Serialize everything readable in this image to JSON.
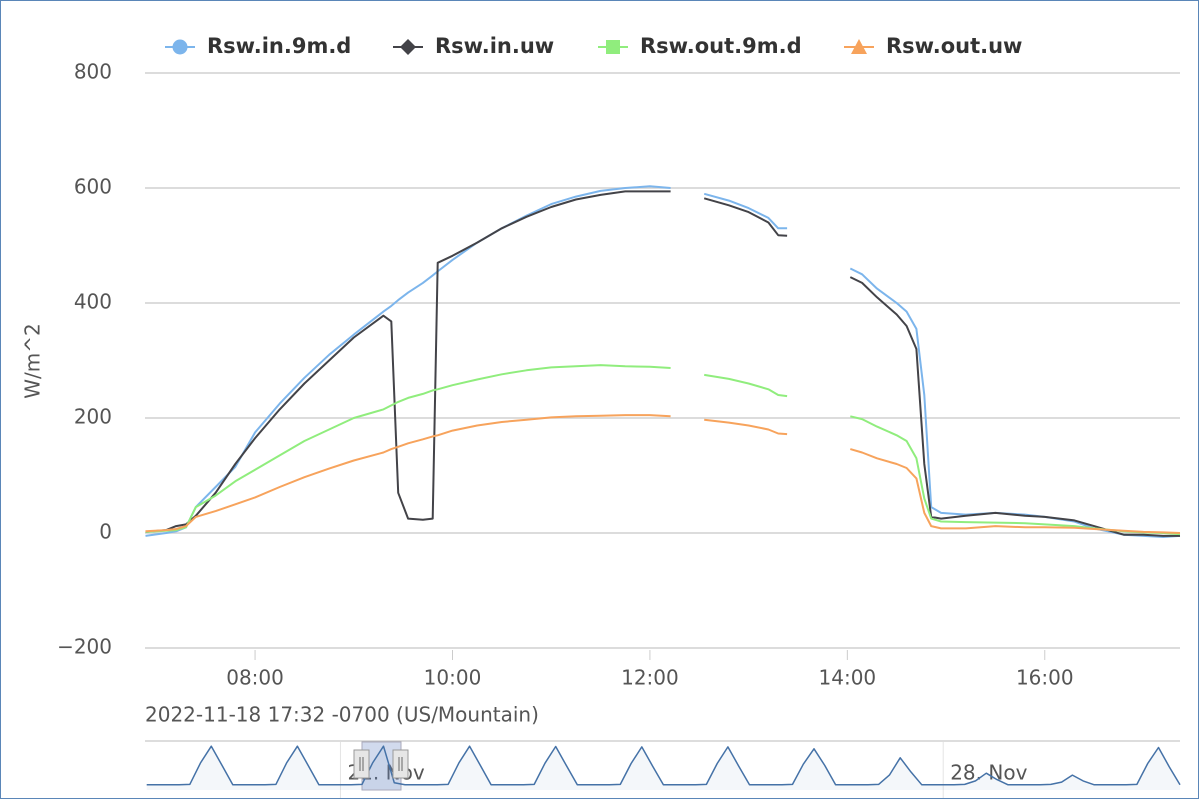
{
  "chart_data": {
    "type": "line",
    "y_axis_label": "W/m^2",
    "caption": "2022-11-18 17:32 -0700 (US/Mountain)",
    "grid": true,
    "legend": "top",
    "xlim": [
      6.885,
      17.37
    ],
    "xticks": [
      {
        "value": 8,
        "label": "08:00"
      },
      {
        "value": 10,
        "label": "10:00"
      },
      {
        "value": 12,
        "label": "12:00"
      },
      {
        "value": 14,
        "label": "14:00"
      },
      {
        "value": 16,
        "label": "16:00"
      }
    ],
    "ylim": [
      -200,
      800
    ],
    "yticks": [
      {
        "value": -200,
        "label": "−200"
      },
      0,
      200,
      400,
      600,
      800
    ],
    "x": [
      6.89,
      7.1,
      7.2,
      7.3,
      7.4,
      7.6,
      7.8,
      8.0,
      8.25,
      8.5,
      8.75,
      9.0,
      9.3,
      9.38,
      9.45,
      9.55,
      9.7,
      9.8,
      9.85,
      10.0,
      10.25,
      10.5,
      10.75,
      11.0,
      11.25,
      11.5,
      11.75,
      12.0,
      12.21,
      12.38,
      12.55,
      12.8,
      13.0,
      13.2,
      13.3,
      13.39,
      13.7,
      14.03,
      14.15,
      14.3,
      14.5,
      14.6,
      14.7,
      14.78,
      14.85,
      14.95,
      15.2,
      15.5,
      15.8,
      16.0,
      16.3,
      16.5,
      16.8,
      17.0,
      17.2,
      17.37
    ],
    "series": [
      {
        "name": "Rsw.in.9m.d",
        "color": "#7cb5ec",
        "marker": "circle",
        "values": [
          -5,
          0,
          3,
          10,
          45,
          80,
          115,
          175,
          225,
          270,
          310,
          345,
          385,
          395,
          405,
          418,
          435,
          448,
          455,
          475,
          505,
          530,
          552,
          572,
          585,
          595,
          600,
          603,
          600,
          null,
          590,
          578,
          565,
          548,
          530,
          530,
          null,
          460,
          450,
          425,
          400,
          385,
          355,
          240,
          45,
          35,
          32,
          35,
          32,
          28,
          20,
          8,
          -3,
          -5,
          -7,
          -5
        ]
      },
      {
        "name": "Rsw.in.uw",
        "color": "#434348",
        "marker": "diamond",
        "values": [
          2,
          5,
          12,
          15,
          30,
          70,
          120,
          165,
          215,
          260,
          300,
          340,
          378,
          368,
          70,
          25,
          23,
          25,
          470,
          482,
          505,
          530,
          550,
          567,
          580,
          588,
          594,
          594,
          594,
          null,
          582,
          570,
          558,
          540,
          518,
          517,
          null,
          445,
          435,
          410,
          380,
          360,
          320,
          120,
          28,
          25,
          30,
          35,
          30,
          28,
          22,
          12,
          -3,
          -3,
          -5,
          -5
        ]
      },
      {
        "name": "Rsw.out.9m.d",
        "color": "#90ed7d",
        "marker": "square",
        "values": [
          2,
          4,
          5,
          10,
          45,
          65,
          90,
          110,
          135,
          160,
          180,
          200,
          215,
          222,
          228,
          235,
          242,
          248,
          250,
          257,
          267,
          276,
          283,
          288,
          290,
          292,
          290,
          289,
          287,
          null,
          275,
          268,
          260,
          250,
          240,
          238,
          null,
          203,
          198,
          185,
          170,
          160,
          130,
          60,
          25,
          20,
          19,
          18,
          17,
          15,
          12,
          8,
          3,
          1,
          0,
          -2
        ]
      },
      {
        "name": "Rsw.out.uw",
        "color": "#f7a35c",
        "marker": "triangle",
        "values": [
          3,
          5,
          7,
          12,
          28,
          38,
          50,
          62,
          80,
          97,
          112,
          126,
          140,
          146,
          150,
          156,
          163,
          168,
          170,
          178,
          187,
          193,
          197,
          201,
          203,
          204,
          205,
          205,
          203,
          null,
          197,
          192,
          187,
          180,
          173,
          172,
          null,
          146,
          140,
          130,
          120,
          113,
          95,
          35,
          12,
          8,
          8,
          12,
          10,
          10,
          9,
          7,
          4,
          2,
          1,
          0
        ]
      }
    ],
    "navigator": {
      "color": "#4572a7",
      "xlim": [
        18.73,
        30.75
      ],
      "ylim": [
        -20,
        650
      ],
      "xticks": [
        {
          "value": 21,
          "label": "21. Nov"
        },
        {
          "value": 28,
          "label": "28. Nov"
        }
      ],
      "x": [
        18.75,
        18.875,
        19,
        19.125,
        19.25,
        19.375,
        19.5,
        19.625,
        19.75,
        19.875,
        20,
        20.125,
        20.25,
        20.375,
        20.5,
        20.625,
        20.75,
        20.875,
        21,
        21.125,
        21.25,
        21.375,
        21.5,
        21.625,
        21.75,
        21.875,
        22,
        22.125,
        22.25,
        22.375,
        22.5,
        22.625,
        22.75,
        22.875,
        23,
        23.125,
        23.25,
        23.375,
        23.5,
        23.625,
        23.75,
        23.875,
        24,
        24.125,
        24.25,
        24.375,
        24.5,
        24.625,
        24.75,
        24.875,
        25,
        25.125,
        25.25,
        25.375,
        25.5,
        25.625,
        25.75,
        25.875,
        26,
        26.125,
        26.25,
        26.375,
        26.5,
        26.625,
        26.75,
        26.875,
        27,
        27.125,
        27.25,
        27.375,
        27.5,
        27.625,
        27.75,
        27.875,
        28,
        28.125,
        28.25,
        28.375,
        28.5,
        28.625,
        28.75,
        28.875,
        29,
        29.125,
        29.25,
        29.375,
        29.5,
        29.625,
        29.75,
        29.875,
        30,
        30.125,
        30.25,
        30.375,
        30.5,
        30.625,
        30.75
      ],
      "values": [
        0,
        0,
        0,
        0,
        5,
        340,
        600,
        300,
        0,
        0,
        0,
        0,
        5,
        340,
        600,
        300,
        0,
        0,
        0,
        0,
        5,
        345,
        600,
        30,
        0,
        0,
        0,
        0,
        5,
        340,
        600,
        300,
        0,
        0,
        0,
        0,
        5,
        335,
        595,
        295,
        0,
        0,
        0,
        0,
        5,
        330,
        590,
        290,
        0,
        0,
        0,
        0,
        5,
        330,
        590,
        290,
        0,
        0,
        0,
        0,
        5,
        320,
        560,
        300,
        0,
        0,
        0,
        0,
        5,
        150,
        420,
        200,
        0,
        0,
        0,
        0,
        5,
        60,
        180,
        80,
        0,
        0,
        0,
        0,
        5,
        40,
        150,
        60,
        0,
        0,
        0,
        0,
        5,
        330,
        580,
        280,
        0
      ]
    }
  }
}
